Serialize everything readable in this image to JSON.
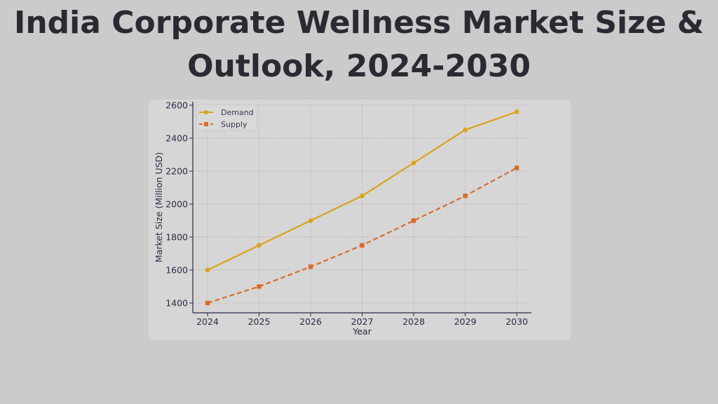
{
  "page_title": "India Corporate Wellness Market Size & Outlook, 2024-2030",
  "chart_data": {
    "type": "line",
    "title": "",
    "xlabel": "Year",
    "ylabel": "Market Size (Million USD)",
    "x": [
      2024,
      2025,
      2026,
      2027,
      2028,
      2029,
      2030
    ],
    "yticks": [
      1400,
      1600,
      1800,
      2000,
      2200,
      2400,
      2600
    ],
    "ylim": [
      1345,
      2650
    ],
    "grid": true,
    "legend_placement": "top-left",
    "series": [
      {
        "name": "Demand",
        "values": [
          1600,
          1750,
          1900,
          2050,
          2250,
          2450,
          2560
        ],
        "color": "#dba21c",
        "marker": "circle",
        "style": "solid"
      },
      {
        "name": "Supply",
        "values": [
          1400,
          1500,
          1620,
          1750,
          1900,
          2050,
          2220
        ],
        "color": "#db6a2a",
        "marker": "square",
        "style": "dashed"
      }
    ]
  }
}
